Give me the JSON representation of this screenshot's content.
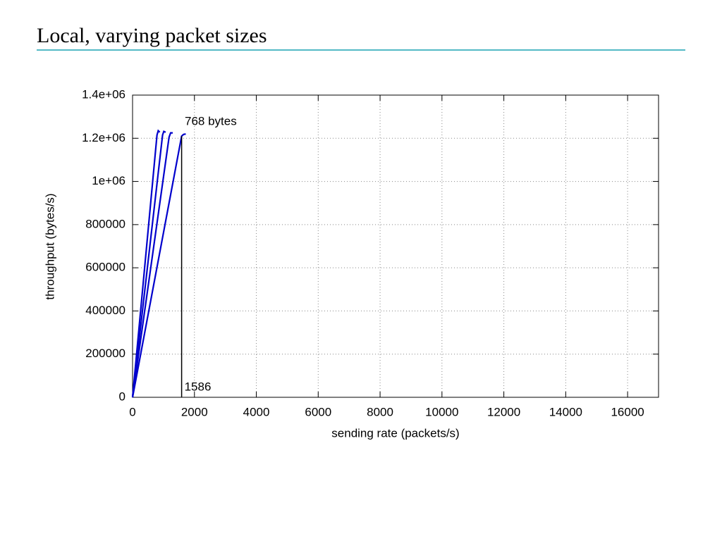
{
  "title": "Local, varying packet sizes",
  "chart_data": {
    "type": "line",
    "xlabel": "sending rate (packets/s)",
    "ylabel": "throughput (bytes/s)",
    "xlim": [
      0,
      17000
    ],
    "ylim": [
      0,
      1400000
    ],
    "xticks": [
      0,
      2000,
      4000,
      6000,
      8000,
      10000,
      12000,
      14000,
      16000
    ],
    "yticks": [
      0,
      200000,
      400000,
      600000,
      800000,
      {
        "value": 1000000,
        "label": "1e+06"
      },
      {
        "value": 1200000,
        "label": "1.2e+06"
      },
      {
        "value": 1400000,
        "label": "1.4e+06"
      }
    ],
    "grid": true,
    "series": [
      {
        "color": "#0000cc",
        "x": [
          0,
          790,
          830,
          880
        ],
        "values": [
          0,
          1215000,
          1235000,
          1228000
        ]
      },
      {
        "color": "#0000cc",
        "x": [
          0,
          970,
          1010,
          1070
        ],
        "values": [
          0,
          1215000,
          1232000,
          1228000
        ]
      },
      {
        "color": "#0000cc",
        "x": [
          0,
          1180,
          1230,
          1300
        ],
        "values": [
          0,
          1205000,
          1225000,
          1225000
        ]
      },
      {
        "color": "#0000cc",
        "x": [
          0,
          1586,
          1650,
          1720
        ],
        "values": [
          0,
          1210000,
          1218000,
          1220000
        ]
      }
    ],
    "annotation": "768 bytes",
    "marker_x": 1586
  }
}
